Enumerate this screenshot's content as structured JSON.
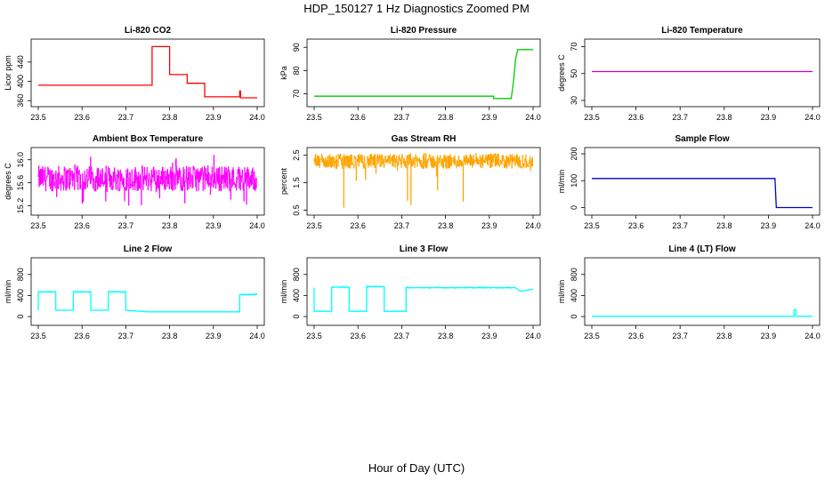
{
  "figure": {
    "title": "HDP_150127  1 Hz Diagnostics Zoomed PM",
    "xlabel": "Hour of Day (UTC)"
  },
  "chart_data": [
    {
      "type": "line",
      "title": "Li-820 CO2",
      "ylabel": "Licor ppm",
      "color": "#ff0000",
      "xlim": [
        23.5,
        24.0
      ],
      "xticks": [
        "23.5",
        "23.6",
        "23.7",
        "23.8",
        "23.9",
        "24.0"
      ],
      "ylim": [
        355,
        480
      ],
      "yticks": [
        "360",
        "400",
        "440"
      ],
      "yticks_values": [
        360,
        400,
        440
      ],
      "series": [
        {
          "x": [
            23.5,
            23.76,
            23.76,
            23.8,
            23.8,
            23.84,
            23.84,
            23.88,
            23.88,
            23.96,
            23.96,
            23.962,
            23.962,
            24.0
          ],
          "y": [
            392,
            392,
            472,
            472,
            414,
            414,
            396,
            396,
            368,
            368,
            380,
            380,
            366,
            366
          ]
        }
      ]
    },
    {
      "type": "line",
      "title": "Li-820 Pressure",
      "ylabel": "kPa",
      "color": "#00cc00",
      "xlim": [
        23.5,
        24.0
      ],
      "xticks": [
        "23.5",
        "23.6",
        "23.7",
        "23.8",
        "23.9",
        "24.0"
      ],
      "ylim": [
        66,
        92
      ],
      "yticks": [
        "70",
        "80",
        "90"
      ],
      "yticks_values": [
        70,
        80,
        90
      ],
      "series": [
        {
          "x": [
            23.5,
            23.91,
            23.91,
            23.95,
            23.955,
            23.96,
            23.965,
            24.0
          ],
          "y": [
            69,
            69,
            68,
            68,
            75,
            85,
            89,
            89
          ]
        }
      ]
    },
    {
      "type": "line",
      "title": "Li-820 Temperature",
      "ylabel": "degrees C",
      "color": "#cc00cc",
      "xlim": [
        23.5,
        24.0
      ],
      "xticks": [
        "23.5",
        "23.6",
        "23.7",
        "23.8",
        "23.9",
        "24.0"
      ],
      "ylim": [
        28,
        73
      ],
      "yticks": [
        "30",
        "50",
        "70"
      ],
      "yticks_values": [
        30,
        50,
        70
      ],
      "series": [
        {
          "x": [
            23.5,
            24.0
          ],
          "y": [
            51.5,
            51.5
          ]
        }
      ]
    },
    {
      "type": "line",
      "title": "Ambient Box Temperature",
      "ylabel": "degrees C",
      "color": "#ff00ff",
      "xlim": [
        23.5,
        24.0
      ],
      "xticks": [
        "23.5",
        "23.6",
        "23.7",
        "23.8",
        "23.9",
        "24.0"
      ],
      "ylim": [
        15.1,
        16.15
      ],
      "yticks": [
        "15.2",
        "15.6",
        "16.0"
      ],
      "yticks_values": [
        15.2,
        15.6,
        16.0
      ],
      "noise_band": {
        "center": 15.7,
        "range": [
          15.45,
          15.9
        ],
        "spikes_min": 15.2,
        "spikes_max": 16.1
      }
    },
    {
      "type": "line",
      "title": "Gas Stream RH",
      "ylabel": "percent",
      "color": "#ffa500",
      "xlim": [
        23.5,
        24.0
      ],
      "xticks": [
        "23.5",
        "23.6",
        "23.7",
        "23.8",
        "23.9",
        "24.0"
      ],
      "ylim": [
        0.45,
        2.65
      ],
      "yticks": [
        "0.5",
        "1.5",
        "2.5"
      ],
      "yticks_values": [
        0.5,
        1.5,
        2.5
      ],
      "noise_band": {
        "center": 2.3,
        "range": [
          2.0,
          2.55
        ],
        "spikes_min": 0.5,
        "spikes_max": 2.6
      }
    },
    {
      "type": "line",
      "title": "Sample Flow",
      "ylabel": "ml/min",
      "color": "#0000cc",
      "xlim": [
        23.5,
        24.0
      ],
      "xticks": [
        "23.5",
        "23.6",
        "23.7",
        "23.8",
        "23.9",
        "24.0"
      ],
      "ylim": [
        -15,
        210
      ],
      "yticks": [
        "0",
        "100",
        "200"
      ],
      "yticks_values": [
        0,
        100,
        200
      ],
      "series": [
        {
          "x": [
            23.5,
            23.915,
            23.918,
            24.0
          ],
          "y": [
            108,
            108,
            0,
            0
          ]
        }
      ]
    },
    {
      "type": "line",
      "title": "Line 2 Flow",
      "ylabel": "ml/min",
      "color": "#00ffff",
      "xlim": [
        23.5,
        24.0
      ],
      "xticks": [
        "23.5",
        "23.6",
        "23.7",
        "23.8",
        "23.9",
        "24.0"
      ],
      "ylim": [
        -100,
        1050
      ],
      "yticks": [
        "0",
        "400",
        "800"
      ],
      "yticks_values": [
        0,
        400,
        800
      ],
      "series": [
        {
          "x": [
            23.5,
            23.5,
            23.54,
            23.54,
            23.58,
            23.58,
            23.62,
            23.62,
            23.66,
            23.66,
            23.7,
            23.7,
            23.75,
            23.96,
            23.96,
            24.0
          ],
          "y": [
            120,
            470,
            470,
            120,
            120,
            470,
            470,
            120,
            120,
            470,
            470,
            120,
            90,
            90,
            420,
            420
          ]
        }
      ]
    },
    {
      "type": "line",
      "title": "Line 3 Flow",
      "ylabel": "ml/min",
      "color": "#00ffff",
      "xlim": [
        23.5,
        24.0
      ],
      "xticks": [
        "23.5",
        "23.6",
        "23.7",
        "23.8",
        "23.9",
        "24.0"
      ],
      "ylim": [
        -100,
        1050
      ],
      "yticks": [
        "0",
        "400",
        "800"
      ],
      "yticks_values": [
        0,
        400,
        800
      ],
      "series": [
        {
          "x": [
            23.5,
            23.5,
            23.51,
            23.51,
            23.54,
            23.54,
            23.58,
            23.58,
            23.62,
            23.62,
            23.66,
            23.66,
            23.71,
            23.71,
            23.96,
            23.97,
            24.0
          ],
          "y": [
            550,
            100,
            100,
            100,
            100,
            560,
            560,
            100,
            100,
            570,
            570,
            100,
            100,
            550,
            550,
            480,
            520
          ]
        }
      ]
    },
    {
      "type": "line",
      "title": "Line 4 (LT) Flow",
      "ylabel": "ml/min",
      "color": "#00ffff",
      "xlim": [
        23.5,
        24.0
      ],
      "xticks": [
        "23.5",
        "23.6",
        "23.7",
        "23.8",
        "23.9",
        "24.0"
      ],
      "ylim": [
        -100,
        1050
      ],
      "yticks": [
        "0",
        "400",
        "800"
      ],
      "yticks_values": [
        0,
        400,
        800
      ],
      "series": [
        {
          "x": [
            23.5,
            23.958,
            23.958,
            23.962,
            23.962,
            24.0
          ],
          "y": [
            5,
            5,
            130,
            130,
            5,
            5
          ]
        }
      ]
    }
  ]
}
